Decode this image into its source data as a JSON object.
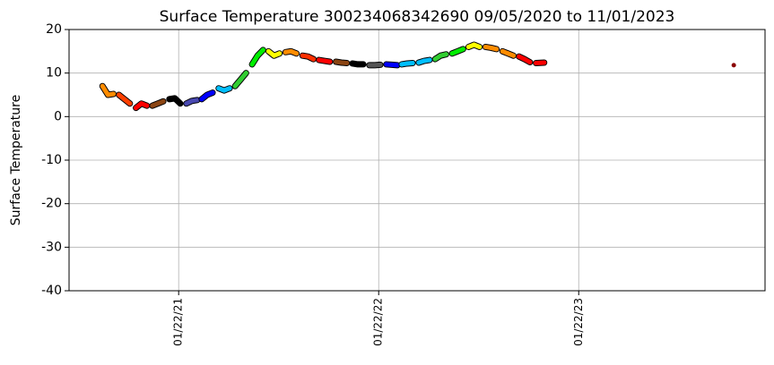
{
  "chart_data": {
    "type": "scatter",
    "title": "Surface Temperature 300234068342690  09/05/2020 to 11/01/2023",
    "y_label": "Surface Temperature",
    "xlim": [
      "07/06/20",
      "12/28/23"
    ],
    "xticks": [
      "01/22/21",
      "01/22/22",
      "01/22/23"
    ],
    "ylim": [
      -40,
      20
    ],
    "yticks": [
      -40,
      -30,
      -20,
      -10,
      0,
      10,
      20
    ],
    "grid": true,
    "series": [
      {
        "color": "#ff8c00",
        "x": [
          "09/05/20",
          "09/15/20",
          "09/25/20"
        ],
        "values": [
          7.0,
          5.0,
          5.2
        ]
      },
      {
        "color": "#ff4000",
        "x": [
          "10/05/20",
          "10/15/20",
          "10/25/20"
        ],
        "values": [
          5.0,
          4.0,
          3.0
        ]
      },
      {
        "color": "#ff0000",
        "x": [
          "11/05/20",
          "11/15/20",
          "11/25/20"
        ],
        "values": [
          2.0,
          3.0,
          2.5
        ]
      },
      {
        "color": "#8b4513",
        "x": [
          "12/05/20",
          "12/15/20",
          "12/25/20"
        ],
        "values": [
          2.5,
          3.0,
          3.5
        ]
      },
      {
        "color": "#000000",
        "x": [
          "01/05/21",
          "01/15/21",
          "01/25/21"
        ],
        "values": [
          4.0,
          4.2,
          3.0
        ]
      },
      {
        "color": "#4848b0",
        "x": [
          "02/05/21",
          "02/15/21",
          "02/25/21"
        ],
        "values": [
          3.0,
          3.6,
          3.8
        ]
      },
      {
        "color": "#0000ff",
        "x": [
          "03/05/21",
          "03/15/21",
          "03/25/21"
        ],
        "values": [
          4.0,
          5.0,
          5.5
        ]
      },
      {
        "color": "#00bfff",
        "x": [
          "04/05/21",
          "04/15/21",
          "04/25/21"
        ],
        "values": [
          6.5,
          6.0,
          6.5
        ]
      },
      {
        "color": "#32cd32",
        "x": [
          "05/05/21",
          "05/15/21",
          "05/25/21"
        ],
        "values": [
          7.0,
          8.5,
          10.0
        ]
      },
      {
        "color": "#00ee00",
        "x": [
          "06/05/21",
          "06/15/21",
          "06/25/21"
        ],
        "values": [
          12.0,
          14.0,
          15.3
        ]
      },
      {
        "color": "#ffff00",
        "x": [
          "07/05/21",
          "07/15/21",
          "07/25/21"
        ],
        "values": [
          15.0,
          14.0,
          14.5
        ]
      },
      {
        "color": "#ff8c00",
        "x": [
          "08/05/21",
          "08/15/21",
          "08/25/21"
        ],
        "values": [
          14.8,
          15.0,
          14.5
        ]
      },
      {
        "color": "#ff3000",
        "x": [
          "09/05/21",
          "09/15/21",
          "09/25/21"
        ],
        "values": [
          14.0,
          13.8,
          13.2
        ]
      },
      {
        "color": "#ff0000",
        "x": [
          "10/05/21",
          "10/15/21",
          "10/25/21"
        ],
        "values": [
          13.0,
          12.8,
          12.6
        ]
      },
      {
        "color": "#8b4513",
        "x": [
          "11/05/21",
          "11/15/21",
          "11/25/21"
        ],
        "values": [
          12.6,
          12.4,
          12.3
        ]
      },
      {
        "color": "#000000",
        "x": [
          "12/05/21",
          "12/15/21",
          "12/25/21"
        ],
        "values": [
          12.2,
          12.0,
          12.0
        ]
      },
      {
        "color": "#555555",
        "x": [
          "01/05/22",
          "01/15/22",
          "01/25/22"
        ],
        "values": [
          11.8,
          11.8,
          11.9
        ]
      },
      {
        "color": "#0000ff",
        "x": [
          "02/05/22",
          "02/15/22",
          "02/25/22"
        ],
        "values": [
          12.0,
          11.9,
          11.8
        ]
      },
      {
        "color": "#00bfff",
        "x": [
          "03/05/22",
          "03/15/22",
          "03/25/22"
        ],
        "values": [
          12.0,
          12.2,
          12.3
        ]
      },
      {
        "color": "#00bfff",
        "x": [
          "04/05/22",
          "04/15/22",
          "04/25/22"
        ],
        "values": [
          12.4,
          12.8,
          13.0
        ]
      },
      {
        "color": "#32cd32",
        "x": [
          "05/05/22",
          "05/15/22",
          "05/25/22"
        ],
        "values": [
          13.2,
          14.0,
          14.3
        ]
      },
      {
        "color": "#00ee00",
        "x": [
          "06/05/22",
          "06/15/22",
          "06/25/22"
        ],
        "values": [
          14.5,
          15.0,
          15.5
        ]
      },
      {
        "color": "#ffff00",
        "x": [
          "07/05/22",
          "07/15/22",
          "07/25/22"
        ],
        "values": [
          16.0,
          16.5,
          16.0
        ]
      },
      {
        "color": "#ff8c00",
        "x": [
          "08/05/22",
          "08/15/22",
          "08/25/22"
        ],
        "values": [
          16.0,
          15.8,
          15.5
        ]
      },
      {
        "color": "#ff8c00",
        "x": [
          "09/05/22",
          "09/15/22",
          "09/25/22"
        ],
        "values": [
          15.0,
          14.5,
          14.0
        ]
      },
      {
        "color": "#ff0000",
        "x": [
          "10/05/22",
          "10/15/22",
          "10/25/22"
        ],
        "values": [
          13.8,
          13.2,
          12.5
        ]
      },
      {
        "color": "#ff0000",
        "x": [
          "11/05/22",
          "11/20/22"
        ],
        "values": [
          12.3,
          12.4
        ]
      },
      {
        "color": "#8b0000",
        "x": [
          "11/01/23"
        ],
        "values": [
          11.8
        ]
      }
    ]
  }
}
